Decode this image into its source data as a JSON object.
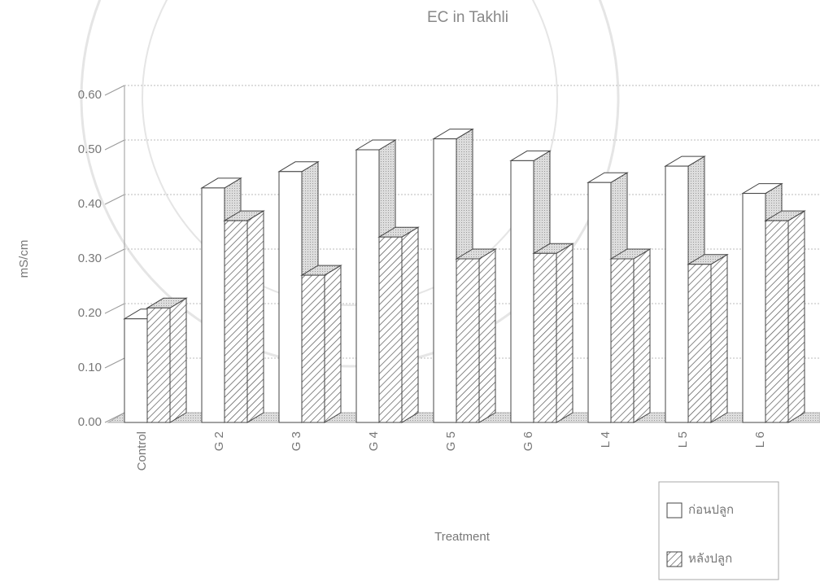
{
  "chart_data": {
    "type": "bar3d",
    "title": "EC in Takhli",
    "y_label": "mS/cm",
    "x_label": "Treatment",
    "categories": [
      "Control",
      "G 2",
      "G 3",
      "G 4",
      "G 5",
      "G 6",
      "L 4",
      "L 5",
      "L 6"
    ],
    "series": [
      {
        "name": "ก่อนปลูก",
        "color": "#ffffff",
        "values": [
          0.19,
          0.43,
          0.46,
          0.5,
          0.52,
          0.48,
          0.44,
          0.47,
          0.42
        ]
      },
      {
        "name": "หลังปลูก",
        "color": "#666666",
        "values": [
          0.21,
          0.37,
          0.27,
          0.34,
          0.3,
          0.31,
          0.3,
          0.29,
          0.37
        ]
      }
    ],
    "ylim": [
      0,
      0.6
    ],
    "yticks": [
      {
        "value": 0,
        "label": "0.00"
      },
      {
        "value": 0.1,
        "label": "0.10"
      },
      {
        "value": 0.2,
        "label": "0.20"
      },
      {
        "value": 0.3,
        "label": "0.30"
      },
      {
        "value": 0.4,
        "label": "0.40"
      },
      {
        "value": 0.5,
        "label": "0.50"
      },
      {
        "value": 0.6,
        "label": "0.60"
      }
    ],
    "grid": true,
    "legend": "bottom-right"
  }
}
